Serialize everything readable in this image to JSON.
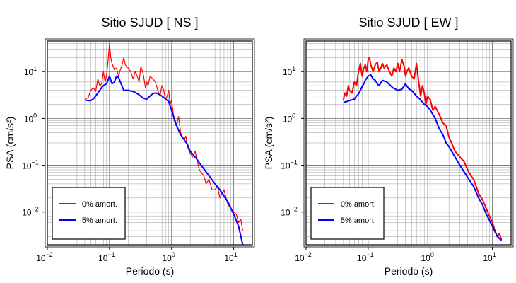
{
  "chart_data": [
    {
      "type": "line",
      "title": "Sitio SJUD [ NS ]",
      "xlabel": "Periodo (s)",
      "ylabel": "PSA (cm/s²)",
      "xscale": "log",
      "yscale": "log",
      "xlim": [
        0.01,
        20
      ],
      "ylim": [
        0.002,
        45
      ],
      "x_ticks": [
        {
          "v": 0.01,
          "b": "10",
          "e": "−2"
        },
        {
          "v": 0.1,
          "b": "10",
          "e": "−1"
        },
        {
          "v": 1,
          "b": "10",
          "e": "0"
        },
        {
          "v": 10,
          "b": "10",
          "e": "1"
        }
      ],
      "y_ticks": [
        {
          "v": 0.01,
          "b": "10",
          "e": "−2"
        },
        {
          "v": 0.1,
          "b": "10",
          "e": "−1"
        },
        {
          "v": 1,
          "b": "10",
          "e": "0"
        },
        {
          "v": 10,
          "b": "10",
          "e": "1"
        }
      ],
      "grid": true,
      "legend_position": "bottom-left",
      "series": [
        {
          "name": "0% amort.",
          "color": "#ff0000",
          "x": [
            0.04,
            0.045,
            0.05,
            0.055,
            0.06,
            0.065,
            0.07,
            0.075,
            0.08,
            0.085,
            0.09,
            0.095,
            0.1,
            0.105,
            0.11,
            0.12,
            0.13,
            0.14,
            0.15,
            0.16,
            0.17,
            0.18,
            0.2,
            0.22,
            0.24,
            0.26,
            0.28,
            0.3,
            0.32,
            0.35,
            0.38,
            0.4,
            0.42,
            0.45,
            0.5,
            0.55,
            0.6,
            0.65,
            0.7,
            0.75,
            0.8,
            0.85,
            0.9,
            0.95,
            1.0,
            1.1,
            1.2,
            1.3,
            1.4,
            1.5,
            1.6,
            1.7,
            1.8,
            2.0,
            2.2,
            2.4,
            2.6,
            2.8,
            3.0,
            3.3,
            3.6,
            4.0,
            4.5,
            5.0,
            5.5,
            6.0,
            7.0,
            8.0,
            9.0,
            10.0,
            11.0,
            12.0,
            13.0,
            14.0
          ],
          "y": [
            2.7,
            2.7,
            4.0,
            4.5,
            3.8,
            7.0,
            5.0,
            5.5,
            10.0,
            6.0,
            8.5,
            17.0,
            40.0,
            20.0,
            15.0,
            11.0,
            12.0,
            8.0,
            11.0,
            14.0,
            20.0,
            14.0,
            12.0,
            10.0,
            7.0,
            10.0,
            8.0,
            6.0,
            13.0,
            9.0,
            4.5,
            6.0,
            5.0,
            8.0,
            7.0,
            6.0,
            4.0,
            3.0,
            5.0,
            4.0,
            2.5,
            3.0,
            4.0,
            2.0,
            2.5,
            0.9,
            0.7,
            1.1,
            0.5,
            0.4,
            0.35,
            0.42,
            0.25,
            0.18,
            0.15,
            0.2,
            0.12,
            0.08,
            0.07,
            0.06,
            0.04,
            0.05,
            0.03,
            0.03,
            0.035,
            0.02,
            0.03,
            0.015,
            0.012,
            0.01,
            0.009,
            0.006,
            0.007,
            0.004
          ]
        },
        {
          "name": "5% amort.",
          "color": "#0000ff",
          "x": [
            0.04,
            0.045,
            0.05,
            0.055,
            0.06,
            0.065,
            0.07,
            0.075,
            0.08,
            0.085,
            0.09,
            0.1,
            0.11,
            0.12,
            0.13,
            0.14,
            0.15,
            0.17,
            0.2,
            0.25,
            0.3,
            0.35,
            0.4,
            0.45,
            0.5,
            0.55,
            0.6,
            0.7,
            0.8,
            0.9,
            1.0,
            1.2,
            1.4,
            1.6,
            1.8,
            2.0,
            2.5,
            3.0,
            4.0,
            5.0,
            6.0,
            7.0,
            8.0,
            10.0,
            12.0,
            14.0
          ],
          "y": [
            2.5,
            2.4,
            2.4,
            2.6,
            3.0,
            3.5,
            4.0,
            4.6,
            5.0,
            5.3,
            5.5,
            8.0,
            5.5,
            6.0,
            8.0,
            7.5,
            6.0,
            4.0,
            4.0,
            3.7,
            3.2,
            2.7,
            2.6,
            3.0,
            3.4,
            3.5,
            3.4,
            3.0,
            2.6,
            2.3,
            1.5,
            0.7,
            0.45,
            0.35,
            0.28,
            0.2,
            0.14,
            0.1,
            0.06,
            0.04,
            0.03,
            0.022,
            0.017,
            0.009,
            0.005,
            0.002
          ]
        }
      ]
    },
    {
      "type": "line",
      "title": "Sitio SJUD [ EW ]",
      "xlabel": "Periodo (s)",
      "ylabel": "PSA (cm/s²)",
      "xscale": "log",
      "yscale": "log",
      "xlim": [
        0.01,
        20
      ],
      "ylim": [
        0.002,
        45
      ],
      "x_ticks": [
        {
          "v": 0.01,
          "b": "10",
          "e": "−2"
        },
        {
          "v": 0.1,
          "b": "10",
          "e": "−1"
        },
        {
          "v": 1,
          "b": "10",
          "e": "0"
        },
        {
          "v": 10,
          "b": "10",
          "e": "1"
        }
      ],
      "y_ticks": [
        {
          "v": 0.01,
          "b": "10",
          "e": "−2"
        },
        {
          "v": 0.1,
          "b": "10",
          "e": "−1"
        },
        {
          "v": 1,
          "b": "10",
          "e": "0"
        },
        {
          "v": 10,
          "b": "10",
          "e": "1"
        }
      ],
      "grid": true,
      "legend_position": "bottom-left",
      "series": [
        {
          "name": "0% amort.",
          "color": "#ff0000",
          "x": [
            0.04,
            0.042,
            0.045,
            0.048,
            0.05,
            0.055,
            0.06,
            0.065,
            0.07,
            0.075,
            0.08,
            0.085,
            0.09,
            0.095,
            0.1,
            0.105,
            0.11,
            0.115,
            0.12,
            0.13,
            0.14,
            0.15,
            0.16,
            0.17,
            0.18,
            0.2,
            0.22,
            0.24,
            0.26,
            0.28,
            0.3,
            0.32,
            0.35,
            0.38,
            0.4,
            0.42,
            0.45,
            0.5,
            0.55,
            0.6,
            0.65,
            0.7,
            0.75,
            0.8,
            0.85,
            0.9,
            1.0,
            1.1,
            1.2,
            1.4,
            1.6,
            1.8,
            2.0,
            2.2,
            2.5,
            3.0,
            3.5,
            4.0,
            4.5,
            5.0,
            6.0,
            7.0,
            8.0,
            9.0,
            10.0,
            11.0,
            12.0,
            13.0,
            14.0
          ],
          "y": [
            2.5,
            3.5,
            3.0,
            5.0,
            4.0,
            3.5,
            6.0,
            5.0,
            10.0,
            15.0,
            8.0,
            12.0,
            14.0,
            10.0,
            18.0,
            20.0,
            14.0,
            12.0,
            10.0,
            14.0,
            16.0,
            10.0,
            12.0,
            15.0,
            12.0,
            14.0,
            10.0,
            8.0,
            12.0,
            10.0,
            15.0,
            10.0,
            18.0,
            13.0,
            8.0,
            10.0,
            12.0,
            8.0,
            7.0,
            15.0,
            6.0,
            3.0,
            5.0,
            3.5,
            2.0,
            3.0,
            2.5,
            1.5,
            1.8,
            1.2,
            0.8,
            0.7,
            0.4,
            0.3,
            0.2,
            0.15,
            0.12,
            0.08,
            0.06,
            0.05,
            0.025,
            0.018,
            0.012,
            0.008,
            0.006,
            0.004,
            0.003,
            0.0035,
            0.0025
          ]
        },
        {
          "name": "5% amort.",
          "color": "#0000ff",
          "x": [
            0.04,
            0.045,
            0.05,
            0.055,
            0.06,
            0.065,
            0.07,
            0.075,
            0.08,
            0.085,
            0.09,
            0.1,
            0.11,
            0.12,
            0.13,
            0.14,
            0.15,
            0.17,
            0.2,
            0.25,
            0.3,
            0.35,
            0.4,
            0.45,
            0.5,
            0.6,
            0.7,
            0.8,
            0.9,
            1.0,
            1.2,
            1.4,
            1.6,
            1.8,
            2.0,
            2.5,
            3.0,
            4.0,
            5.0,
            6.0,
            7.0,
            8.0,
            10.0,
            12.0,
            14.0
          ],
          "y": [
            2.2,
            2.3,
            2.4,
            2.5,
            2.6,
            3.0,
            3.3,
            4.0,
            4.8,
            5.5,
            6.5,
            8.0,
            8.5,
            7.0,
            6.5,
            5.5,
            5.0,
            6.5,
            6.0,
            4.5,
            4.0,
            4.2,
            5.5,
            4.3,
            4.0,
            3.0,
            2.5,
            2.0,
            1.8,
            1.5,
            1.0,
            0.6,
            0.45,
            0.3,
            0.25,
            0.15,
            0.1,
            0.055,
            0.035,
            0.02,
            0.014,
            0.009,
            0.005,
            0.003,
            0.0025
          ]
        }
      ]
    }
  ]
}
